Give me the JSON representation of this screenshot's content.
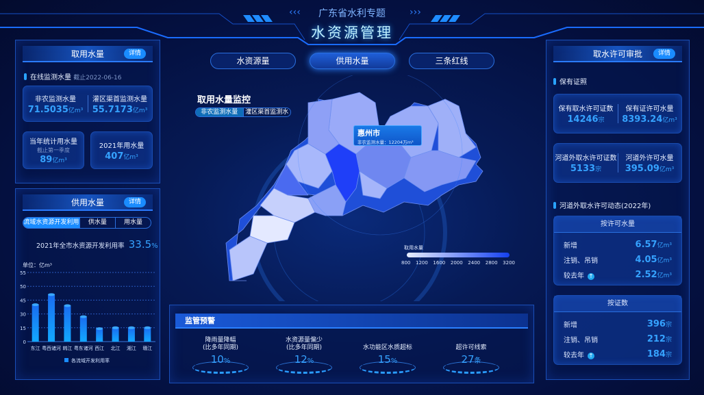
{
  "header": {
    "subtitle": "广东省水利专题",
    "title": "水资源管理"
  },
  "tabs": [
    {
      "label": "水资源量",
      "active": false
    },
    {
      "label": "供用水量",
      "active": true
    },
    {
      "label": "三条红线",
      "active": false
    }
  ],
  "detail_label": "详情",
  "water_use": {
    "title": "取用水量",
    "online_label": "在线监测水量",
    "online_date": "截止2022-06-16",
    "nonagri_label": "非农监测水量",
    "nonagri_value": "71.5035",
    "irrig_label": "灌区渠首监测水量",
    "irrig_value": "55.7173",
    "year_stat_label": "当年统计用水量",
    "year_stat_note": "截止第一季度",
    "year_stat_value": "89",
    "y2021_label": "2021年用水量",
    "y2021_value": "407",
    "unit": "亿m³"
  },
  "supply": {
    "title": "供用水量",
    "seg": [
      "流域水资源开发利用",
      "供水量",
      "用水量"
    ],
    "rate_label": "2021年全市水资源开发利用率",
    "rate_value": "33.5",
    "rate_unit": "%"
  },
  "chart_data": {
    "type": "bar",
    "ylabel": "单位：亿m³",
    "yticks": [
      0,
      15,
      30,
      45,
      50,
      55
    ],
    "categories": [
      "东江",
      "粤西诸河",
      "韩江",
      "粤东诸河",
      "西江",
      "北江",
      "湘江",
      "赣江"
    ],
    "series": [
      {
        "name": "各流域开发利用率",
        "values": [
          40,
          47,
          39,
          27,
          14,
          15,
          15,
          15
        ]
      }
    ],
    "legend": "bottom",
    "grid": true,
    "color": "#1a8cff"
  },
  "map": {
    "title": "取用水量监控",
    "toggle": [
      "非农监测水量",
      "灌区渠首监测水量"
    ],
    "tooltip": {
      "city": "惠州市",
      "label": "非农监测水量：",
      "value": "12204",
      "unit": "万m³"
    },
    "legend_title": "取用水量",
    "legend_ticks": [
      "800",
      "1200",
      "1600",
      "2000",
      "2400",
      "2800",
      "3200"
    ]
  },
  "warning": {
    "title": "监管预警",
    "items": [
      {
        "label1": "降雨量降幅",
        "label2": "(比多年同期)",
        "value": "10",
        "unit": "%"
      },
      {
        "label1": "水资源量偏少",
        "label2": "(比多年同期)",
        "value": "12",
        "unit": "%"
      },
      {
        "label1": "水功能区水质超标",
        "label2": "",
        "value": "15",
        "unit": "%"
      },
      {
        "label1": "超许可线索",
        "label2": "",
        "value": "27",
        "unit": "条"
      }
    ]
  },
  "permit": {
    "title": "取水许可审批",
    "hold_label": "保有证照",
    "hold_count_label": "保有取水许可证数",
    "hold_count": "14246",
    "hold_vol_label": "保有证许可水量",
    "hold_vol": "8393.24",
    "river_count_label": "河道外取水许可证数",
    "river_count": "5133",
    "river_vol_label": "河道外许可水量",
    "river_vol": "395.09",
    "dyn_label": "河道外取水许可动态(2022年)",
    "unit_case": "宗",
    "unit_vol": "亿m³",
    "by_vol": {
      "title": "按许可水量",
      "rows": [
        {
          "label": "新增",
          "value": "6.57"
        },
        {
          "label": "注销、吊销",
          "value": "4.05"
        },
        {
          "label": "较去年",
          "value": "2.52"
        }
      ]
    },
    "by_cert": {
      "title": "按证数",
      "rows": [
        {
          "label": "新增",
          "value": "396"
        },
        {
          "label": "注销、吊销",
          "value": "212"
        },
        {
          "label": "较去年",
          "value": "184"
        }
      ]
    }
  }
}
